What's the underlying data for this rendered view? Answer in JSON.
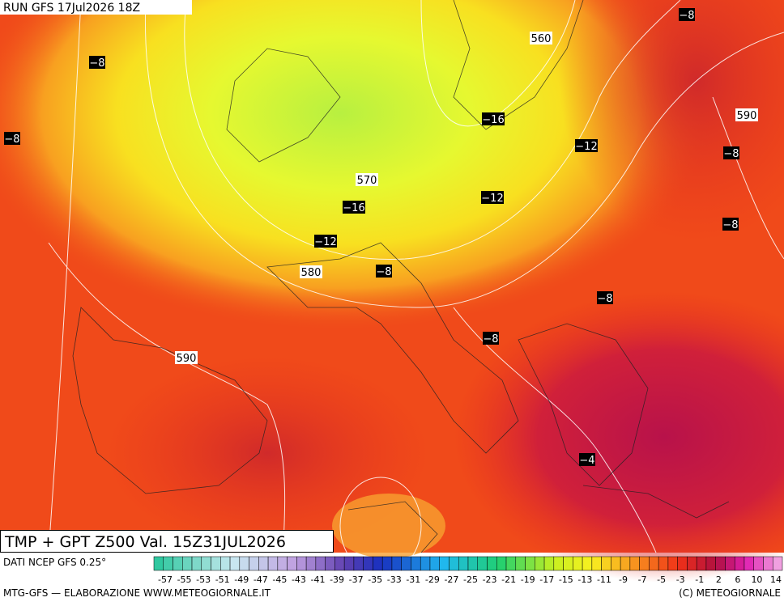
{
  "header": {
    "run": "RUN GFS 17Jul2026 18Z",
    "title": "TMP + GPT Z500 Val. 15Z31JUL2026"
  },
  "map": {
    "labels": [
      {
        "text": "−8",
        "kind": "temperature"
      },
      {
        "text": "−8",
        "kind": "temperature"
      },
      {
        "text": "560",
        "kind": "height"
      },
      {
        "text": "−16",
        "kind": "temperature"
      },
      {
        "text": "590",
        "kind": "height"
      },
      {
        "text": "−8",
        "kind": "temperature"
      },
      {
        "text": "−12",
        "kind": "temperature"
      },
      {
        "text": "−8",
        "kind": "temperature"
      },
      {
        "text": "570",
        "kind": "height"
      },
      {
        "text": "−16",
        "kind": "temperature"
      },
      {
        "text": "−12",
        "kind": "temperature"
      },
      {
        "text": "−8",
        "kind": "temperature"
      },
      {
        "text": "−12",
        "kind": "temperature"
      },
      {
        "text": "580",
        "kind": "height"
      },
      {
        "text": "−8",
        "kind": "temperature"
      },
      {
        "text": "−8",
        "kind": "temperature"
      },
      {
        "text": "−8",
        "kind": "temperature"
      },
      {
        "text": "590",
        "kind": "height"
      },
      {
        "text": "−4",
        "kind": "temperature"
      }
    ]
  },
  "footer": {
    "source": "DATI NCEP GFS 0.25°",
    "credit": "MTG-GFS — ELABORAZIONE WWW.METEOGIORNALE.IT",
    "copyright": "(C) METEOGIORNALE"
  },
  "colorbar": {
    "labels": [
      -57,
      -55,
      -53,
      -51,
      -49,
      -47,
      -45,
      -43,
      -41,
      -39,
      -37,
      -35,
      -33,
      -31,
      -29,
      -27,
      -25,
      -23,
      -21,
      -19,
      -17,
      -15,
      -13,
      -11,
      -9,
      -7,
      -5,
      -3,
      -1,
      2,
      6,
      10,
      14
    ]
  }
}
